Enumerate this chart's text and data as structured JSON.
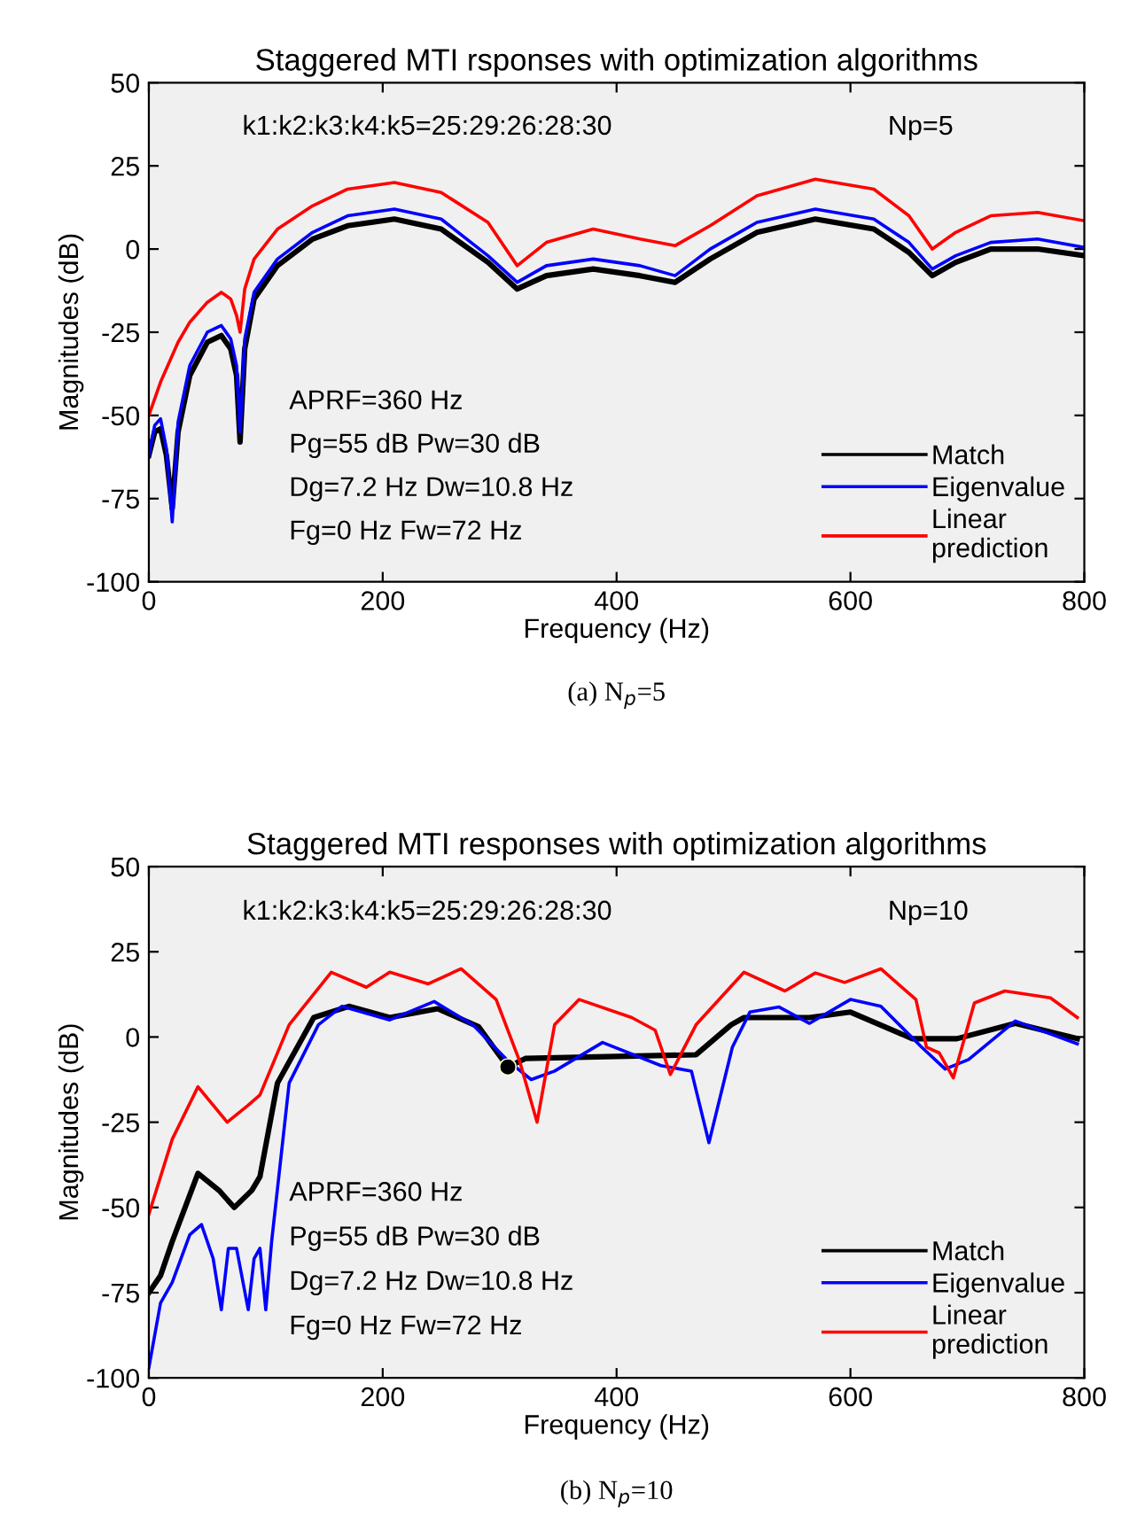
{
  "chart_data": [
    {
      "type": "line",
      "title": "Staggered MTI rsponses with optimization algorithms",
      "xlabel": "Frequency (Hz)",
      "ylabel": "Magnitudes (dB)",
      "xlim": [
        0,
        800
      ],
      "xticks": [
        0,
        200,
        400,
        600,
        800
      ],
      "ylim": [
        -100,
        50
      ],
      "yticks": [
        -100,
        -75,
        -50,
        -25,
        0,
        25,
        50
      ],
      "grid": false,
      "legend": "bottom right",
      "marker": "none",
      "line_style": "solid",
      "annotations": [
        "k1:k2:k3:k4:k5=25:29:26:28:30",
        "Np=5",
        "APRF=360 Hz",
        "Pg=55 dB Pw=30 dB",
        "Dg=7.2 Hz Dw=10.8 Hz",
        "Fg=0 Hz Fw=72 Hz",
        "(a) N$_{p}$=5"
      ],
      "series": [
        {
          "name": "Match",
          "color": "#000000",
          "x": [
            0,
            5,
            10,
            15,
            20,
            25,
            35,
            50,
            62,
            70,
            75,
            78,
            82,
            90,
            110,
            140,
            170,
            210,
            250,
            290,
            315,
            340,
            380,
            420,
            450,
            480,
            520,
            570,
            620,
            650,
            670,
            690,
            720,
            760,
            800
          ],
          "values": [
            -62,
            -55,
            -54,
            -62,
            -78,
            -55,
            -38,
            -28,
            -26,
            -30,
            -38,
            -58,
            -30,
            -15,
            -5,
            3,
            7,
            9,
            6,
            -4,
            -12,
            -8,
            -6,
            -8,
            -10,
            -3,
            5,
            9,
            6,
            -1,
            -8,
            -4,
            0,
            0,
            -2
          ]
        },
        {
          "name": "Eigenvalue",
          "color": "#0000ff",
          "x": [
            0,
            5,
            10,
            15,
            20,
            25,
            35,
            50,
            62,
            70,
            75,
            78,
            82,
            90,
            110,
            140,
            170,
            210,
            250,
            290,
            315,
            340,
            380,
            420,
            450,
            480,
            520,
            570,
            620,
            650,
            670,
            690,
            720,
            760,
            800
          ],
          "values": [
            -62,
            -53,
            -51,
            -60,
            -82,
            -52,
            -35,
            -25,
            -23,
            -27,
            -35,
            -55,
            -27,
            -13,
            -3,
            5,
            10,
            12,
            9,
            -2,
            -10,
            -5,
            -3,
            -5,
            -8,
            0,
            8,
            12,
            9,
            2,
            -6,
            -2,
            2,
            3,
            0.5
          ]
        },
        {
          "name": "Linear\nprediction",
          "color": "#ff0000",
          "x": [
            0,
            5,
            10,
            15,
            20,
            25,
            35,
            50,
            62,
            70,
            75,
            78,
            82,
            90,
            110,
            140,
            170,
            210,
            250,
            290,
            315,
            340,
            380,
            420,
            450,
            480,
            520,
            570,
            620,
            650,
            670,
            690,
            720,
            760,
            800
          ],
          "values": [
            -50,
            -45,
            -40,
            -36,
            -32,
            -28,
            -22,
            -16,
            -13,
            -15,
            -20,
            -25,
            -12,
            -3,
            6,
            13,
            18,
            20,
            17,
            8,
            -5,
            2,
            6,
            3,
            1,
            7,
            16,
            21,
            18,
            10,
            0,
            5,
            10,
            11,
            8.5
          ]
        }
      ]
    },
    {
      "type": "line",
      "title": "Staggered MTI responses with optimization algorithms",
      "xlabel": "Frequency (Hz)",
      "ylabel": "Magnitudes (dB)",
      "xlim": [
        0,
        800
      ],
      "xticks": [
        0,
        200,
        400,
        600,
        800
      ],
      "ylim": [
        -100,
        50
      ],
      "yticks": [
        -100,
        -75,
        -50,
        -25,
        0,
        25,
        50
      ],
      "grid": false,
      "legend": "bottom right",
      "marker": "none",
      "line_style": "solid",
      "annotations": [
        "k1:k2:k3:k4:k5=25:29:26:28:30",
        "Np=10",
        "APRF=360 Hz",
        "Pg=55 dB Pw=30 dB",
        "Dg=7.2 Hz Dw=10.8 Hz",
        "Fg=0 Hz Fw=72 Hz",
        "(b) N$_{p}$=10"
      ],
      "series": [
        {
          "name": "Match",
          "color": "#000000",
          "x": [
            0,
            10,
            20,
            42,
            60,
            73,
            88,
            95,
            110,
            141,
            171,
            206,
            247,
            282,
            307,
            322,
            468,
            498,
            509,
            565,
            600,
            653,
            691,
            741,
            794
          ],
          "values": [
            -75,
            -70,
            -60,
            -40,
            -45,
            -50,
            -45,
            -41,
            -13.5,
            5.7,
            9,
            5.7,
            8.3,
            3,
            -8.8,
            -6.3,
            -5.2,
            3.6,
            5.7,
            5.7,
            7.3,
            -0.5,
            -0.5,
            4,
            -0.5
          ]
        },
        {
          "name": "Eigenvalue",
          "color": "#0000ff",
          "x": [
            0,
            10,
            20,
            35,
            45,
            55,
            62,
            68,
            75,
            85,
            90,
            95,
            100,
            105,
            120,
            145,
            165,
            206,
            244,
            277,
            307,
            327,
            347,
            388,
            438,
            464,
            479,
            499,
            514,
            539,
            565,
            600,
            626,
            661,
            681,
            701,
            741,
            794
          ],
          "values": [
            -97,
            -78,
            -72,
            -58,
            -55,
            -65,
            -80,
            -62,
            -62,
            -80,
            -65,
            -62,
            -80,
            -60,
            -13.5,
            3.6,
            9,
            5,
            10.4,
            3.6,
            -7,
            -12.5,
            -10,
            -1.6,
            -8.4,
            -10,
            -31,
            -3,
            7.3,
            8.8,
            4,
            11,
            9,
            -3,
            -9.4,
            -6.6,
            4.7,
            -2
          ]
        },
        {
          "name": "Linear\nprediction",
          "color": "#ff0000",
          "x": [
            0,
            20,
            42,
            67,
            85,
            95,
            120,
            156,
            186,
            206,
            239,
            267,
            297,
            317,
            332,
            347,
            368,
            413,
            433,
            446,
            468,
            509,
            544,
            570,
            595,
            626,
            656,
            665,
            676,
            688,
            706,
            732,
            771,
            794
          ],
          "values": [
            -52,
            -30,
            -14.6,
            -25,
            -20,
            -17,
            3.6,
            19,
            14.6,
            19,
            15.6,
            20,
            11,
            -7,
            -25,
            3.6,
            11,
            5.7,
            2,
            -11,
            3.6,
            19,
            13.5,
            18.8,
            16,
            20,
            11,
            -3,
            -4.7,
            -12,
            10,
            13.5,
            11.5,
            5.7
          ]
        },
        {
          "type": "scatter",
          "color": "#000000",
          "marker": "circle",
          "x": [
            307
          ],
          "values": [
            -8.8
          ]
        }
      ]
    }
  ]
}
